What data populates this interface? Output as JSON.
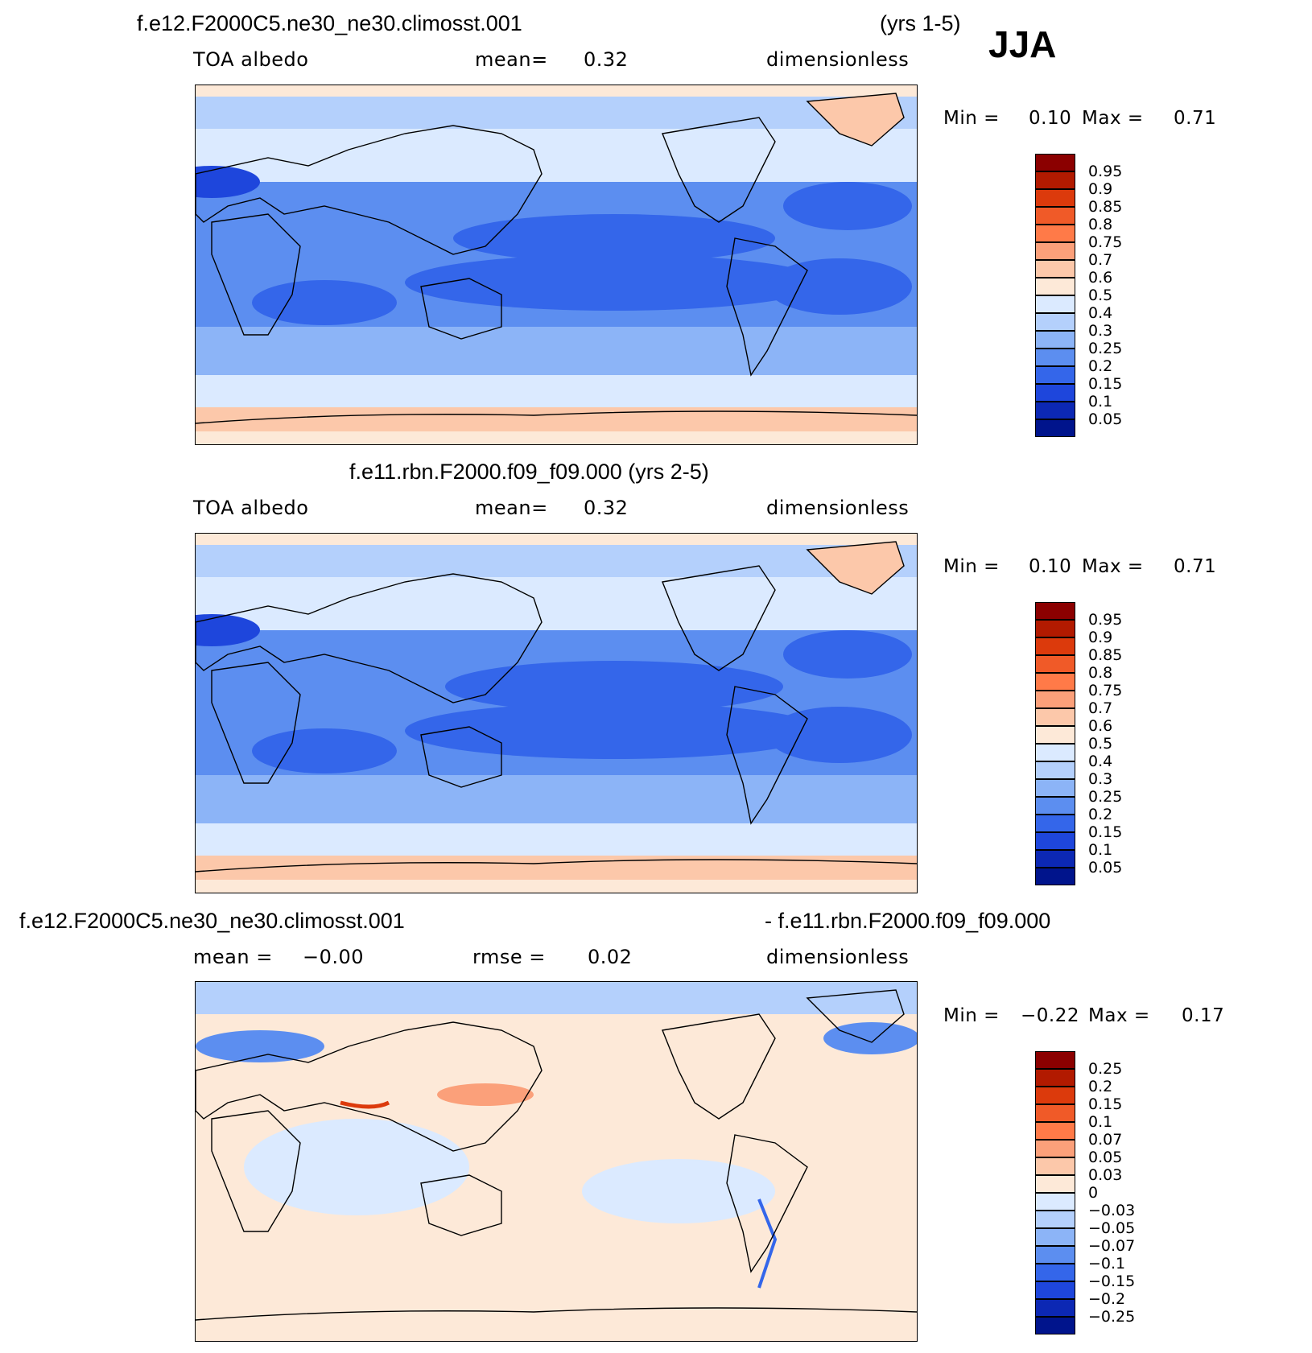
{
  "season": "JJA",
  "panels": [
    {
      "title_left": "f.e12.F2000C5.ne30_ne30.climosst.001",
      "title_right": "(yrs 1-5)",
      "sub_left": "TOA albedo",
      "sub_mid_label": "mean=",
      "sub_mid_value": "0.32",
      "sub_right": "dimensionless",
      "min_label": "Min =",
      "min_value": "0.10",
      "max_label": "Max =",
      "max_value": "0.71",
      "levels": [
        "0.95",
        "0.9",
        "0.85",
        "0.8",
        "0.75",
        "0.7",
        "0.6",
        "0.5",
        "0.4",
        "0.3",
        "0.25",
        "0.2",
        "0.15",
        "0.1",
        "0.05"
      ]
    },
    {
      "title_left": "f.e11.rbn.F2000.f09_f09.000 (yrs 2-5)",
      "title_right": "",
      "sub_left": "TOA albedo",
      "sub_mid_label": "mean=",
      "sub_mid_value": "0.32",
      "sub_right": "dimensionless",
      "min_label": "Min =",
      "min_value": "0.10",
      "max_label": "Max =",
      "max_value": "0.71",
      "levels": [
        "0.95",
        "0.9",
        "0.85",
        "0.8",
        "0.75",
        "0.7",
        "0.6",
        "0.5",
        "0.4",
        "0.3",
        "0.25",
        "0.2",
        "0.15",
        "0.1",
        "0.05"
      ]
    },
    {
      "title_left": "f.e12.F2000C5.ne30_ne30.climosst.001",
      "title_right": "- f.e11.rbn.F2000.f09_f09.000",
      "sub_left": "mean =",
      "sub_left_value": "−0.00",
      "sub_mid_label": "rmse =",
      "sub_mid_value": "0.02",
      "sub_right": "dimensionless",
      "min_label": "Min =",
      "min_value": "−0.22",
      "max_label": "Max =",
      "max_value": "0.17",
      "levels": [
        "0.25",
        "0.2",
        "0.15",
        "0.1",
        "0.07",
        "0.05",
        "0.03",
        "0",
        "−0.03",
        "−0.05",
        "−0.07",
        "−0.1",
        "−0.15",
        "−0.2",
        "−0.25"
      ]
    }
  ],
  "colorbar_colors": [
    "#8b0000",
    "#b21a00",
    "#dc3a0c",
    "#f05a28",
    "#ff7a48",
    "#fba07a",
    "#fcc8aa",
    "#fde9d8",
    "#dbeaff",
    "#b4d0fc",
    "#8cb4f7",
    "#5c8ef0",
    "#3466ea",
    "#1e46dc",
    "#0c28b4",
    "#00148c"
  ],
  "palette": {
    "land_coast": "#000000",
    "ocean_mid": "#3466ea",
    "ice": "#fcc8aa",
    "diff_bg": "#fde9d8"
  }
}
